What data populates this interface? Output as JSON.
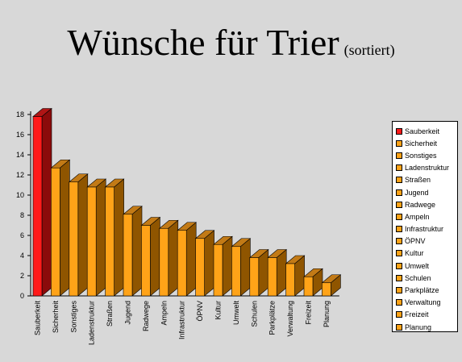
{
  "page": {
    "title": "Wünsche für Trier",
    "subtitle": "(sortiert)"
  },
  "chart_data": {
    "type": "bar",
    "categories": [
      "Sauberkeit",
      "Sicherheit",
      "Sonstiges",
      "Ladenstruktur",
      "Straßen",
      "Jugend",
      "Radwege",
      "Ampeln",
      "Infrastruktur",
      "ÖPNV",
      "Kultur",
      "Umwelt",
      "Schulen",
      "Parkplätze",
      "Verwaltung",
      "Freizeit",
      "Planung"
    ],
    "values": [
      17.8,
      12.7,
      11.3,
      10.8,
      10.8,
      8.1,
      7.0,
      6.7,
      6.5,
      5.7,
      5.1,
      4.9,
      3.8,
      3.8,
      3.2,
      1.9,
      1.3
    ],
    "ylim": [
      0,
      18
    ],
    "yticks": [
      "0",
      "2",
      "4",
      "6",
      "8",
      "10",
      "12",
      "14",
      "16",
      "18"
    ],
    "legend_position": "right",
    "colors": {
      "highlight_front": "#ff1a1a",
      "highlight_side": "#8b0b0b",
      "highlight_top": "#b01515",
      "bar_front": "#ffa318",
      "bar_side": "#8f5500",
      "bar_top": "#c27a16",
      "background": "#d8d8d8"
    }
  }
}
